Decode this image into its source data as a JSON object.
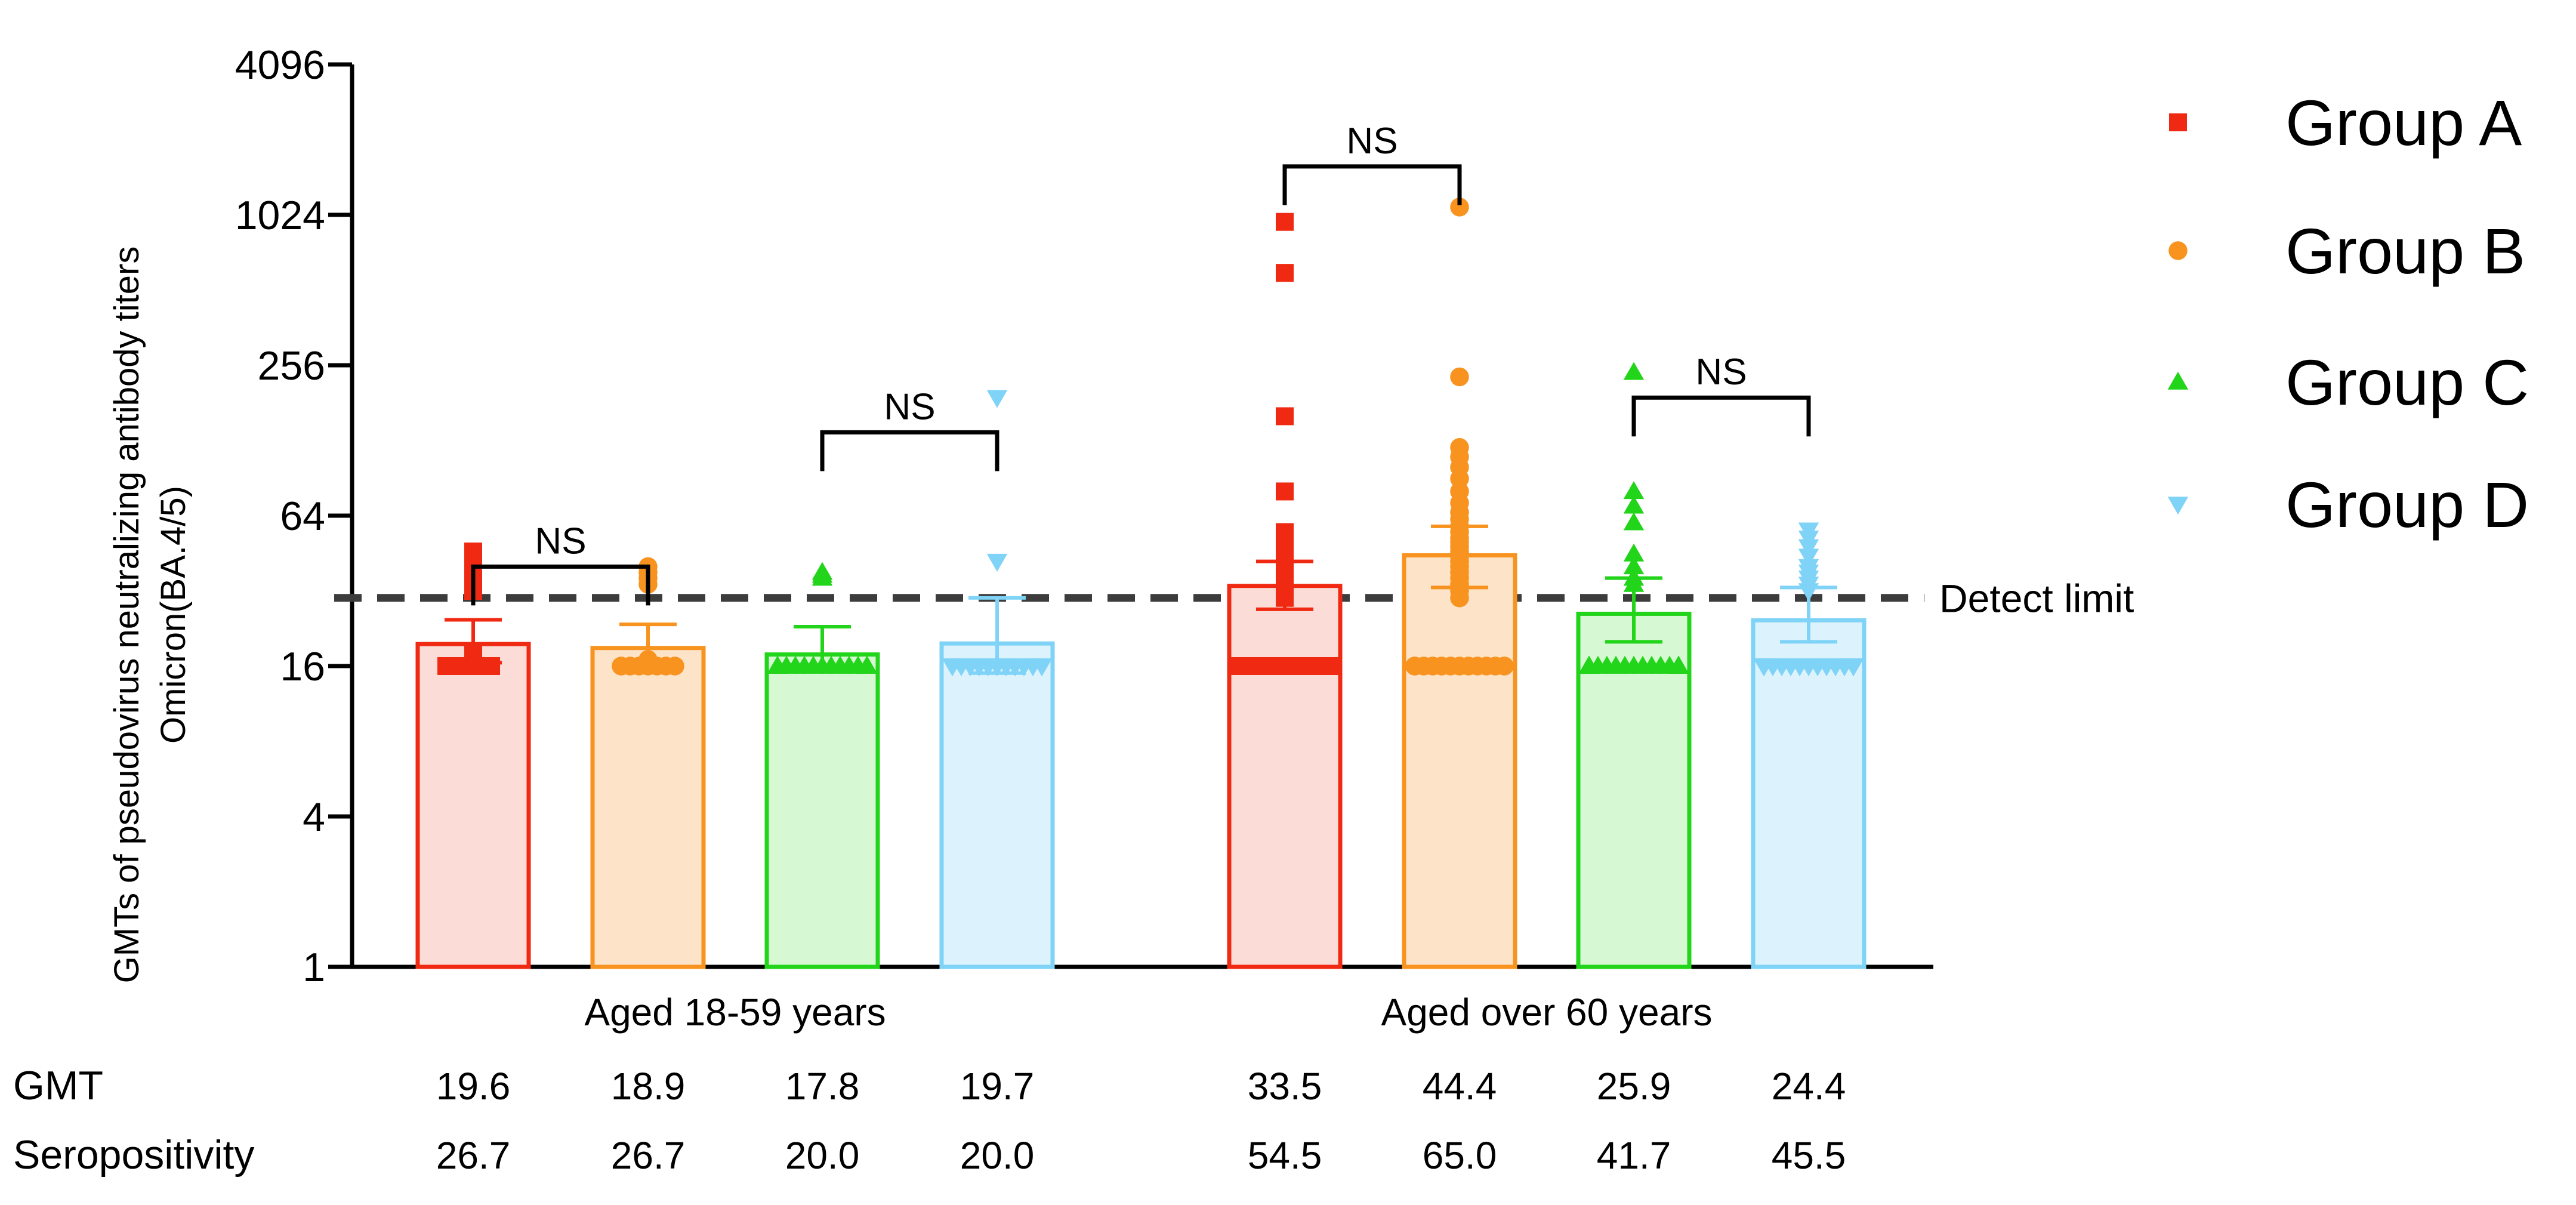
{
  "chart_data": {
    "type": "bar",
    "scale": "log2",
    "ylabel_lines": [
      "GMTs of pseudovirus neutralizing antibody titers",
      "Omicron(BA.4/5)"
    ],
    "yticks": [
      1,
      4,
      16,
      64,
      256,
      1024,
      4096
    ],
    "ytick_labels": [
      "1",
      "4",
      "16",
      "64",
      "256",
      "1024",
      "4096"
    ],
    "ylim": [
      1,
      4096
    ],
    "categories": [
      "Aged 18-59 years",
      "Aged over 60 years"
    ],
    "series": [
      {
        "name": "Group A",
        "color": "#f02a12",
        "fill": "#fbdcd6",
        "marker": "square",
        "values": [
          19.6,
          33.5
        ],
        "error_upper": [
          24.5,
          42
        ],
        "error_lower": [
          16.5,
          27
        ],
        "points": [
          [
            16,
            16,
            16,
            16,
            16,
            16,
            17,
            18,
            32,
            34,
            36,
            38,
            40,
            42,
            46
          ],
          [
            16,
            16,
            16,
            16,
            16,
            16,
            16,
            16,
            16,
            16,
            16,
            16,
            16,
            16,
            16,
            16,
            16,
            16,
            16,
            16,
            30,
            34,
            36,
            38,
            40,
            42,
            44,
            46,
            48,
            50,
            52,
            55,
            80,
            160,
            600,
            960
          ]
        ]
      },
      {
        "name": "Group B",
        "color": "#f7931e",
        "fill": "#fde3c7",
        "marker": "circle",
        "values": [
          18.9,
          44.4
        ],
        "error_upper": [
          23.5,
          58
        ],
        "error_lower": [
          16,
          33
        ],
        "points": [
          [
            16,
            16,
            16,
            16,
            16,
            16,
            16,
            17,
            34,
            36,
            38,
            40
          ],
          [
            16,
            16,
            16,
            16,
            16,
            16,
            16,
            16,
            16,
            16,
            16,
            16,
            16,
            16,
            30,
            32,
            34,
            36,
            38,
            40,
            42,
            44,
            46,
            48,
            50,
            52,
            55,
            58,
            62,
            66,
            72,
            80,
            90,
            100,
            110,
            120,
            230,
            1100
          ]
        ]
      },
      {
        "name": "Group C",
        "color": "#22d41a",
        "fill": "#d6f8d2",
        "marker": "triangle-up",
        "values": [
          17.8,
          25.9
        ],
        "error_upper": [
          23,
          36
        ],
        "error_lower": [
          16,
          20
        ],
        "points": [
          [
            16,
            16,
            16,
            16,
            16,
            16,
            16,
            16,
            16,
            16,
            16,
            16,
            16,
            16,
            16,
            16,
            36,
            37,
            38
          ],
          [
            16,
            16,
            16,
            16,
            16,
            16,
            16,
            16,
            16,
            16,
            16,
            16,
            16,
            16,
            16,
            16,
            16,
            16,
            16,
            16,
            16,
            34,
            36,
            40,
            45,
            60,
            70,
            80,
            240
          ]
        ]
      },
      {
        "name": "Group D",
        "color": "#7fd3f7",
        "fill": "#dcf3fd",
        "marker": "triangle-down",
        "values": [
          19.7,
          24.4
        ],
        "error_upper": [
          30,
          33
        ],
        "error_lower": [
          15,
          20
        ],
        "points": [
          [
            16,
            16,
            16,
            16,
            16,
            16,
            16,
            16,
            16,
            16,
            16,
            16,
            16,
            42,
            190
          ],
          [
            16,
            16,
            16,
            16,
            16,
            16,
            16,
            16,
            16,
            16,
            16,
            16,
            16,
            16,
            16,
            16,
            16,
            16,
            16,
            16,
            32,
            34,
            36,
            38,
            40,
            44,
            48,
            52,
            56
          ]
        ]
      }
    ],
    "detect_limit": 30,
    "detect_limit_label": "Detect limit",
    "significance": [
      {
        "label": "NS",
        "from": [
          0,
          0
        ],
        "to": [
          0,
          1
        ],
        "y": 40
      },
      {
        "label": "NS",
        "from": [
          0,
          2
        ],
        "to": [
          0,
          3
        ],
        "y": 138
      },
      {
        "label": "NS",
        "from": [
          1,
          0
        ],
        "to": [
          1,
          1
        ],
        "y": 1600
      },
      {
        "label": "NS",
        "from": [
          1,
          2
        ],
        "to": [
          1,
          3
        ],
        "y": 190
      }
    ],
    "table": {
      "rows": [
        {
          "label": "GMT",
          "values": [
            "19.6",
            "18.9",
            "17.8",
            "19.7",
            "33.5",
            "44.4",
            "25.9",
            "24.4"
          ]
        },
        {
          "label": "Seropositivity",
          "values": [
            "26.7",
            "26.7",
            "20.0",
            "20.0",
            "54.5",
            "65.0",
            "41.7",
            "45.5"
          ]
        }
      ]
    }
  }
}
